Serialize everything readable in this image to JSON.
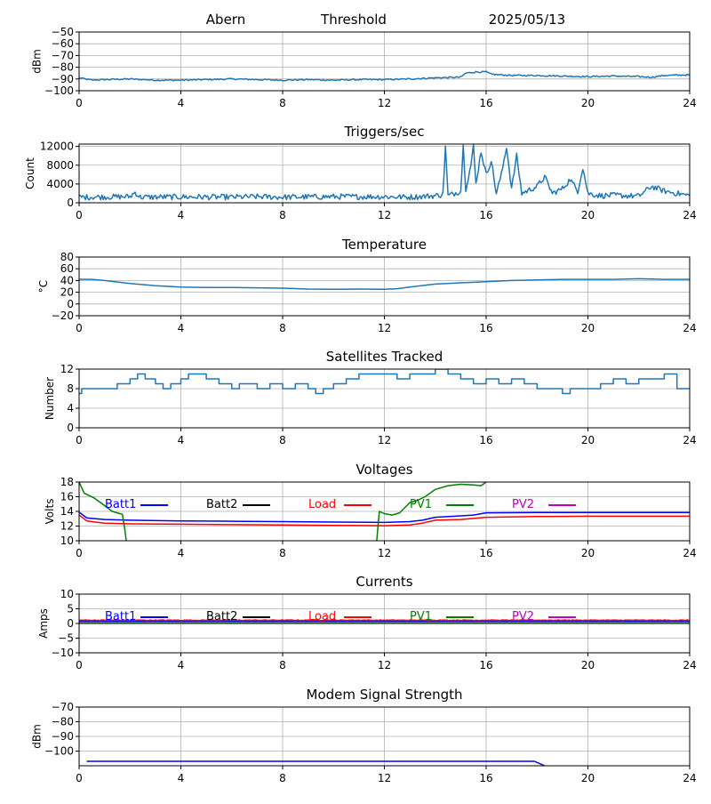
{
  "header": {
    "station": "Abern",
    "mode": "Threshold",
    "date": "2025/05/13"
  },
  "colors": {
    "series_default": "#1f77b4",
    "grid": "#b0b0b0",
    "batt1": "#0000ff",
    "batt2": "#000000",
    "load": "#ff0000",
    "pv1": "#008000",
    "pv2": "#bf00bf"
  },
  "chart_data": [
    {
      "id": "threshold",
      "type": "line",
      "title": "",
      "xlabel": "",
      "ylabel": "dBm",
      "xlim": [
        0,
        24
      ],
      "ylim": [
        -100,
        -50
      ],
      "xticks": [
        0,
        4,
        8,
        12,
        16,
        20,
        24
      ],
      "yticks": [
        -100,
        -90,
        -80,
        -70,
        -60,
        -50
      ],
      "grid": true,
      "series": [
        {
          "name": "",
          "color": "#1f77b4",
          "points": [
            [
              0,
              -89
            ],
            [
              0.5,
              -91
            ],
            [
              1,
              -90.5
            ],
            [
              2,
              -90
            ],
            [
              3,
              -91
            ],
            [
              4,
              -91
            ],
            [
              5,
              -90.5
            ],
            [
              6,
              -90
            ],
            [
              7,
              -90.5
            ],
            [
              8,
              -91
            ],
            [
              9,
              -90.5
            ],
            [
              10,
              -91
            ],
            [
              11,
              -90.5
            ],
            [
              12,
              -90.5
            ],
            [
              13,
              -90
            ],
            [
              14,
              -89
            ],
            [
              15,
              -88.5
            ],
            [
              15.2,
              -85
            ],
            [
              15.6,
              -84
            ],
            [
              16,
              -84
            ],
            [
              16.2,
              -86
            ],
            [
              17,
              -87
            ],
            [
              18,
              -87
            ],
            [
              19,
              -87.5
            ],
            [
              20,
              -88
            ],
            [
              21,
              -87.5
            ],
            [
              22,
              -88
            ],
            [
              22.5,
              -88.5
            ],
            [
              23,
              -87
            ],
            [
              24,
              -86.5
            ]
          ],
          "noise": 0.6
        }
      ]
    },
    {
      "id": "triggers",
      "type": "line",
      "title": "Triggers/sec",
      "xlabel": "",
      "ylabel": "Count",
      "xlim": [
        0,
        24
      ],
      "ylim": [
        0,
        12500
      ],
      "xticks": [
        0,
        4,
        8,
        12,
        16,
        20,
        24
      ],
      "yticks": [
        0,
        4000,
        8000,
        12000
      ],
      "grid": true,
      "series": [
        {
          "name": "",
          "color": "#1f77b4",
          "points": [
            [
              0,
              1200
            ],
            [
              2,
              1300
            ],
            [
              2.2,
              2200
            ],
            [
              2.4,
              1200
            ],
            [
              4,
              1250
            ],
            [
              6,
              1200
            ],
            [
              7,
              1300
            ],
            [
              8,
              1200
            ],
            [
              10,
              1300
            ],
            [
              12,
              1300
            ],
            [
              13,
              1200
            ],
            [
              14,
              1500
            ],
            [
              14.3,
              1800
            ],
            [
              14.4,
              12000
            ],
            [
              14.5,
              1500
            ],
            [
              15,
              2500
            ],
            [
              15.1,
              12000
            ],
            [
              15.2,
              3000
            ],
            [
              15.4,
              8000
            ],
            [
              15.5,
              12000
            ],
            [
              15.6,
              4000
            ],
            [
              15.8,
              11000
            ],
            [
              16,
              6000
            ],
            [
              16.2,
              9000
            ],
            [
              16.4,
              2000
            ],
            [
              16.6,
              6000
            ],
            [
              16.8,
              12000
            ],
            [
              17,
              3000
            ],
            [
              17.2,
              10000
            ],
            [
              17.4,
              2000
            ],
            [
              18,
              3500
            ],
            [
              18.3,
              5500
            ],
            [
              18.6,
              2000
            ],
            [
              19,
              3000
            ],
            [
              19.3,
              5000
            ],
            [
              19.6,
              2500
            ],
            [
              19.8,
              7500
            ],
            [
              20,
              2000
            ],
            [
              20.5,
              1500
            ],
            [
              21,
              1600
            ],
            [
              22,
              1400
            ],
            [
              22.5,
              3500
            ],
            [
              23,
              2500
            ],
            [
              23.5,
              2000
            ],
            [
              24,
              1500
            ]
          ],
          "noise": 600
        }
      ]
    },
    {
      "id": "temperature",
      "type": "line",
      "title": "Temperature",
      "xlabel": "",
      "ylabel": "°C",
      "xlim": [
        0,
        24
      ],
      "ylim": [
        -20,
        80
      ],
      "xticks": [
        0,
        4,
        8,
        12,
        16,
        20,
        24
      ],
      "yticks": [
        -20,
        0,
        20,
        40,
        60,
        80
      ],
      "grid": true,
      "series": [
        {
          "name": "",
          "color": "#1f77b4",
          "points": [
            [
              0,
              42
            ],
            [
              0.5,
              42
            ],
            [
              1,
              40
            ],
            [
              2,
              35
            ],
            [
              3,
              31
            ],
            [
              4,
              29
            ],
            [
              5,
              28
            ],
            [
              6,
              28
            ],
            [
              7,
              27.5
            ],
            [
              8,
              27
            ],
            [
              9,
              25.5
            ],
            [
              10,
              25
            ],
            [
              11,
              25.5
            ],
            [
              12,
              25
            ],
            [
              12.5,
              26
            ],
            [
              13,
              29
            ],
            [
              14,
              34
            ],
            [
              15,
              36
            ],
            [
              16,
              38
            ],
            [
              17,
              40
            ],
            [
              18,
              41
            ],
            [
              19,
              42
            ],
            [
              20,
              42
            ],
            [
              21,
              42
            ],
            [
              22,
              43
            ],
            [
              23,
              42
            ],
            [
              24,
              42
            ]
          ],
          "noise": 0
        }
      ]
    },
    {
      "id": "satellites",
      "type": "line",
      "title": "Satellites Tracked",
      "xlabel": "",
      "ylabel": "Number",
      "xlim": [
        0,
        24
      ],
      "ylim": [
        0,
        12
      ],
      "xticks": [
        0,
        4,
        8,
        12,
        16,
        20,
        24
      ],
      "yticks": [
        0,
        4,
        8,
        12
      ],
      "grid": true,
      "step": true,
      "series": [
        {
          "name": "",
          "color": "#1f77b4",
          "points": [
            [
              0,
              7
            ],
            [
              0.1,
              8
            ],
            [
              0.5,
              8
            ],
            [
              0.8,
              8
            ],
            [
              1,
              8
            ],
            [
              1.5,
              9
            ],
            [
              2,
              10
            ],
            [
              2.3,
              11
            ],
            [
              2.6,
              10
            ],
            [
              3,
              9
            ],
            [
              3.3,
              8
            ],
            [
              3.6,
              9
            ],
            [
              4,
              10
            ],
            [
              4.3,
              11
            ],
            [
              5,
              10
            ],
            [
              5.5,
              9
            ],
            [
              6,
              8
            ],
            [
              6.3,
              9
            ],
            [
              7,
              8
            ],
            [
              7.5,
              9
            ],
            [
              8,
              8
            ],
            [
              8.5,
              9
            ],
            [
              9,
              8
            ],
            [
              9.3,
              7
            ],
            [
              9.6,
              8
            ],
            [
              10,
              9
            ],
            [
              10.5,
              10
            ],
            [
              11,
              11
            ],
            [
              11.5,
              11
            ],
            [
              12,
              11
            ],
            [
              12.5,
              10
            ],
            [
              13,
              11
            ],
            [
              14,
              12
            ],
            [
              14.5,
              11
            ],
            [
              15,
              10
            ],
            [
              15.5,
              9
            ],
            [
              16,
              10
            ],
            [
              16.5,
              9
            ],
            [
              17,
              10
            ],
            [
              17.5,
              9
            ],
            [
              18,
              8
            ],
            [
              18.5,
              8
            ],
            [
              19,
              7
            ],
            [
              19.3,
              8
            ],
            [
              20,
              8
            ],
            [
              20.5,
              9
            ],
            [
              21,
              10
            ],
            [
              21.5,
              9
            ],
            [
              22,
              10
            ],
            [
              22.5,
              10
            ],
            [
              23,
              11
            ],
            [
              23.5,
              8
            ],
            [
              24,
              8
            ]
          ],
          "noise": 0
        }
      ]
    },
    {
      "id": "voltages",
      "type": "line",
      "title": "Voltages",
      "xlabel": "",
      "ylabel": "Volts",
      "xlim": [
        0,
        24
      ],
      "ylim": [
        10,
        18
      ],
      "xticks": [
        0,
        4,
        8,
        12,
        16,
        20,
        24
      ],
      "yticks": [
        10,
        12,
        14,
        16,
        18
      ],
      "grid": true,
      "legend": [
        "Batt1",
        "Batt2",
        "Load",
        "PV1",
        "PV2"
      ],
      "series": [
        {
          "name": "Batt1",
          "color": "#0000ff",
          "points": [
            [
              0,
              13.9
            ],
            [
              0.3,
              13.1
            ],
            [
              1,
              12.9
            ],
            [
              2,
              12.8
            ],
            [
              4,
              12.7
            ],
            [
              6,
              12.65
            ],
            [
              8,
              12.6
            ],
            [
              10,
              12.55
            ],
            [
              12,
              12.5
            ],
            [
              13,
              12.6
            ],
            [
              13.5,
              12.8
            ],
            [
              14,
              13.2
            ],
            [
              15,
              13.4
            ],
            [
              15.5,
              13.5
            ],
            [
              16,
              13.8
            ],
            [
              18,
              13.85
            ],
            [
              20,
              13.85
            ],
            [
              24,
              13.85
            ]
          ]
        },
        {
          "name": "Load",
          "color": "#ff0000",
          "points": [
            [
              0,
              13.5
            ],
            [
              0.3,
              12.7
            ],
            [
              1,
              12.4
            ],
            [
              2,
              12.3
            ],
            [
              4,
              12.25
            ],
            [
              6,
              12.2
            ],
            [
              8,
              12.15
            ],
            [
              10,
              12.1
            ],
            [
              12,
              12.05
            ],
            [
              13,
              12.15
            ],
            [
              13.5,
              12.4
            ],
            [
              14,
              12.8
            ],
            [
              15,
              12.9
            ],
            [
              16,
              13.2
            ],
            [
              18,
              13.3
            ],
            [
              20,
              13.35
            ],
            [
              24,
              13.35
            ]
          ]
        },
        {
          "name": "PV1",
          "color": "#008000",
          "points": [
            [
              0,
              18
            ],
            [
              0.2,
              16.5
            ],
            [
              0.6,
              15.8
            ],
            [
              1,
              14.8
            ],
            [
              1.3,
              14
            ],
            [
              1.5,
              13.8
            ],
            [
              1.7,
              13.6
            ],
            [
              1.8,
              11.5
            ],
            [
              1.85,
              10
            ]
          ],
          "points2": [
            [
              11.7,
              10
            ],
            [
              11.8,
              14
            ],
            [
              12,
              13.7
            ],
            [
              12.3,
              13.5
            ],
            [
              12.6,
              13.8
            ],
            [
              13,
              15.2
            ],
            [
              13.3,
              15.5
            ],
            [
              13.6,
              16
            ],
            [
              14,
              17
            ],
            [
              14.5,
              17.5
            ],
            [
              15,
              17.7
            ],
            [
              15.5,
              17.6
            ],
            [
              15.8,
              17.5
            ],
            [
              16,
              18
            ]
          ]
        }
      ]
    },
    {
      "id": "currents",
      "type": "line",
      "title": "Currents",
      "xlabel": "",
      "ylabel": "Amps",
      "xlim": [
        0,
        24
      ],
      "ylim": [
        -10,
        10
      ],
      "xticks": [
        0,
        4,
        8,
        12,
        16,
        20,
        24
      ],
      "yticks": [
        -10,
        -5,
        0,
        5,
        10
      ],
      "grid": true,
      "legend": [
        "Batt1",
        "Batt2",
        "Load",
        "PV1",
        "PV2"
      ],
      "series": [
        {
          "name": "PV2",
          "color": "#bf00bf",
          "points": [
            [
              0,
              0
            ],
            [
              24,
              0
            ]
          ]
        },
        {
          "name": "PV1",
          "color": "#008000",
          "points": [
            [
              0,
              0.3
            ],
            [
              24,
              0.3
            ]
          ]
        },
        {
          "name": "Batt1",
          "color": "#0000ff",
          "points": [
            [
              0,
              0.8
            ],
            [
              24,
              0.8
            ]
          ]
        },
        {
          "name": "Load",
          "color": "#ff0000",
          "points": [
            [
              0,
              1.1
            ],
            [
              24,
              1.1
            ]
          ],
          "noise": 0.12
        }
      ]
    },
    {
      "id": "modem",
      "type": "line",
      "title": "Modem Signal Strength",
      "xlabel": "",
      "ylabel": "dBm",
      "xlim": [
        0,
        24
      ],
      "ylim": [
        -110,
        -70
      ],
      "xticks": [
        0,
        4,
        8,
        12,
        16,
        20,
        24
      ],
      "yticks": [
        -100,
        -90,
        -80,
        -70
      ],
      "grid": true,
      "series": [
        {
          "name": "",
          "color": "#0000ff",
          "points": [
            [
              0.3,
              -107
            ],
            [
              17.9,
              -107
            ],
            [
              18.3,
              -110
            ]
          ]
        }
      ]
    }
  ]
}
